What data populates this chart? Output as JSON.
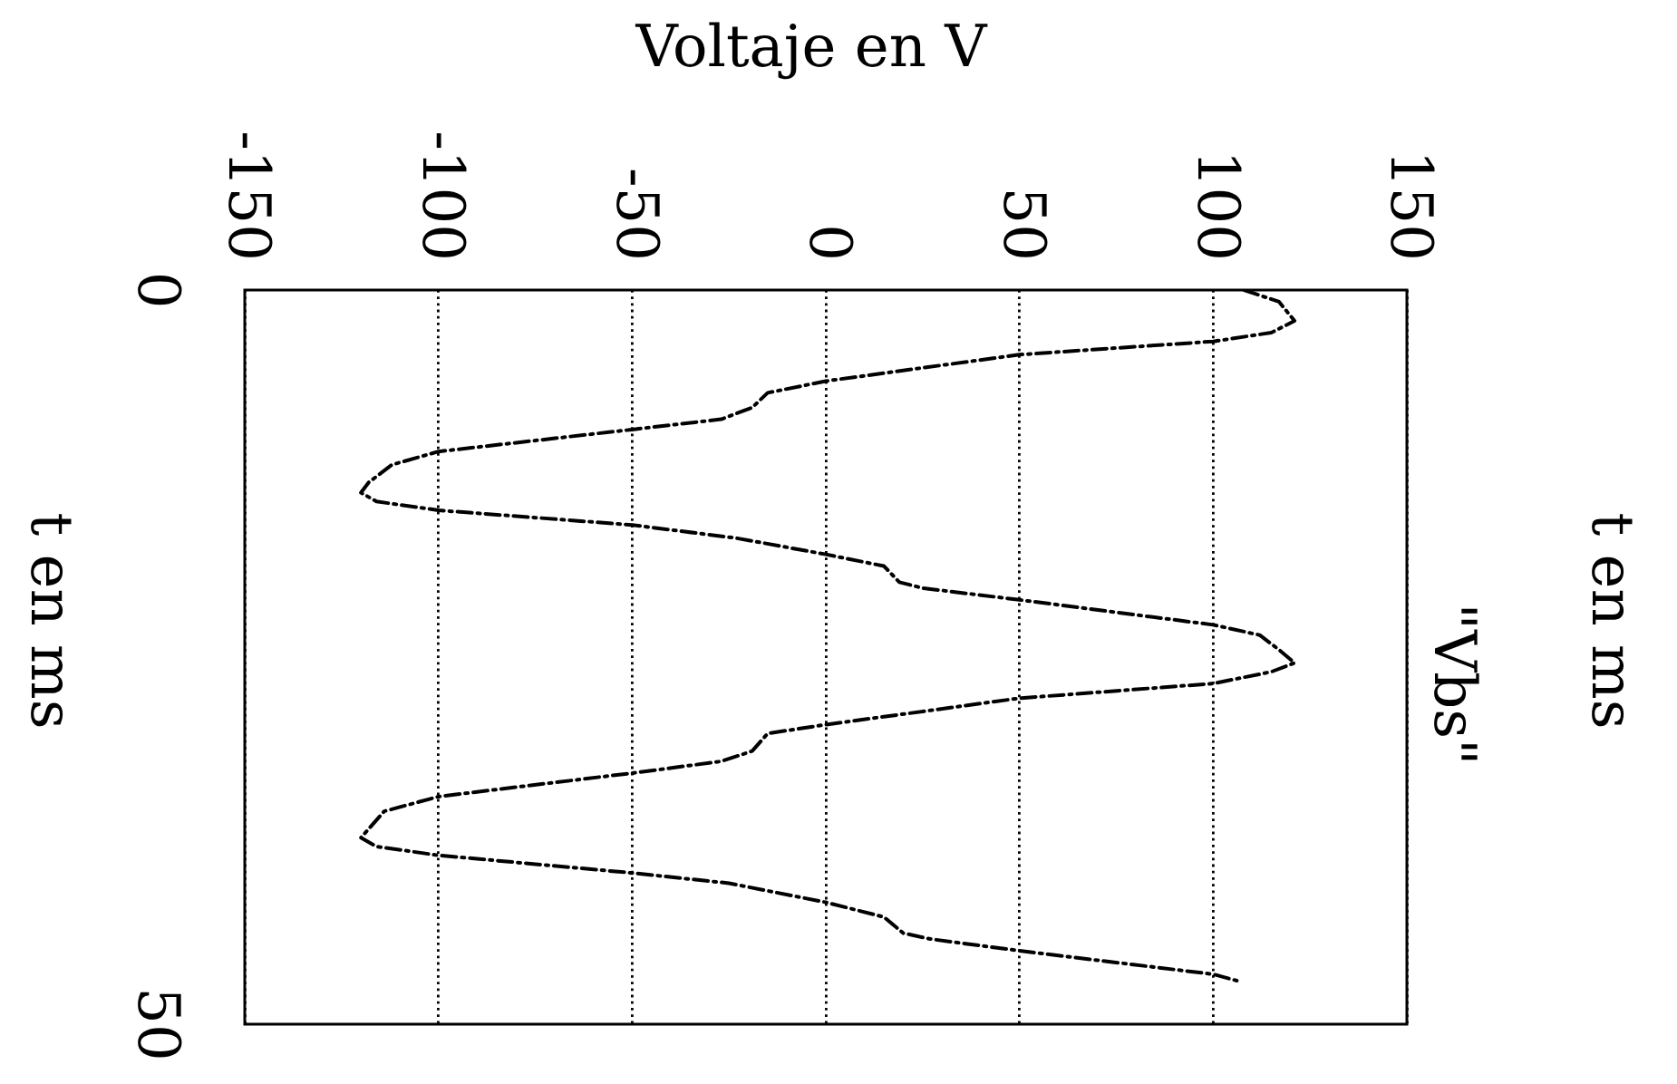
{
  "chart_data": {
    "type": "line",
    "xlabel": "Voltaje en V",
    "ylabel": "t en ms",
    "annotations": [
      "t en ms"
    ],
    "xlim": [
      -150,
      150
    ],
    "xticks": [
      -150,
      -100,
      -50,
      0,
      50,
      100,
      150
    ],
    "ylim": [
      50,
      0
    ],
    "yticks": [
      0,
      50
    ],
    "grid": "x",
    "legend": "right",
    "line_style": "dashed",
    "series": [
      {
        "name": "\"Vbs\"",
        "color": "#000000",
        "x": [
          108,
          117,
          121,
          115,
          100,
          50,
          0,
          -15,
          -19,
          -27,
          -50,
          -100,
          -112,
          -118,
          -120,
          -116,
          -100,
          -50,
          -23,
          0,
          15,
          19,
          25,
          50,
          100,
          112,
          117,
          121,
          115,
          100,
          50,
          0,
          -15,
          -19,
          -27,
          -50,
          -100,
          -114,
          -118,
          -120,
          -116,
          -100,
          -50,
          -25,
          0,
          15,
          20,
          27,
          50,
          100,
          107
        ],
        "values": [
          0,
          0.8,
          2.1,
          2.9,
          3.5,
          4.4,
          6.2,
          7.0,
          8.0,
          8.8,
          9.5,
          11.0,
          11.9,
          13.1,
          13.8,
          14.4,
          15.0,
          16.0,
          16.9,
          18.0,
          18.8,
          19.9,
          20.3,
          21.1,
          22.8,
          23.5,
          24.5,
          25.4,
          26.0,
          26.8,
          27.8,
          29.6,
          30.2,
          31.4,
          32.1,
          32.9,
          34.5,
          35.5,
          36.7,
          37.3,
          37.9,
          38.5,
          39.7,
          40.4,
          41.7,
          42.7,
          43.8,
          44.2,
          45.0,
          46.6,
          47.1
        ]
      }
    ]
  }
}
